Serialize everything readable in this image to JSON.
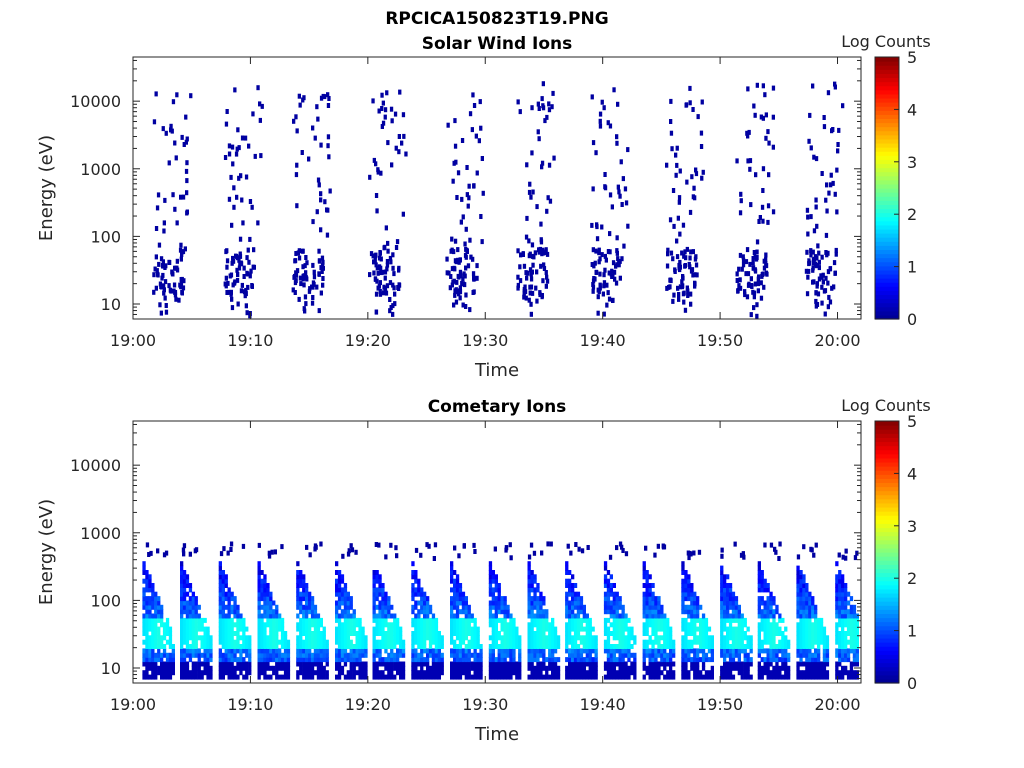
{
  "figure_title": "RPCICA150823T19.PNG",
  "colors": {
    "background": "#ffffff",
    "axes": "#262626",
    "colormap": [
      "#00008f",
      "#0000ff",
      "#0080ff",
      "#00ffff",
      "#80ff80",
      "#ffff00",
      "#ff8000",
      "#ff0000",
      "#800000"
    ]
  },
  "chart_data": [
    {
      "type": "heatmap",
      "title": "Solar Wind Ions",
      "xlabel": "Time",
      "ylabel": "Energy (eV)",
      "x_ticks": [
        "19:00",
        "19:10",
        "19:20",
        "19:30",
        "19:40",
        "19:50",
        "20:00"
      ],
      "x_range_minutes": [
        0,
        62
      ],
      "y_scale": "log",
      "y_ticks": [
        "10",
        "100",
        "1000",
        "10000"
      ],
      "y_range_eV": [
        6,
        45000
      ],
      "colorbar": {
        "label": "Log Counts",
        "ticks": [
          "0",
          "1",
          "2",
          "3",
          "4",
          "5"
        ],
        "range": [
          0,
          5
        ],
        "colormap": "jet"
      },
      "grid": false,
      "sweep_start_minutes": [
        1.6,
        7.7,
        13.5,
        20.0,
        26.6,
        32.6,
        38.9,
        45.3,
        51.3,
        57.2
      ],
      "dominant_level": 0.1,
      "core_energy_range_eV": [
        15,
        70
      ],
      "sparse_energy_range_eV": [
        70,
        20000
      ]
    },
    {
      "type": "heatmap",
      "title": "Cometary Ions",
      "xlabel": "Time",
      "ylabel": "Energy (eV)",
      "x_ticks": [
        "19:00",
        "19:10",
        "19:20",
        "19:30",
        "19:40",
        "19:50",
        "20:00"
      ],
      "x_range_minutes": [
        0,
        62
      ],
      "y_scale": "log",
      "y_ticks": [
        "10",
        "100",
        "1000",
        "10000"
      ],
      "y_range_eV": [
        6,
        45000
      ],
      "colorbar": {
        "label": "Log Counts",
        "ticks": [
          "0",
          "1",
          "2",
          "3",
          "4",
          "5"
        ],
        "range": [
          0,
          5
        ],
        "colormap": "jet"
      },
      "grid": false,
      "sweep_start_minutes": [
        0.8,
        4.0,
        7.3,
        10.6,
        13.9,
        17.2,
        20.4,
        23.7,
        27.0,
        30.3,
        33.6,
        36.8,
        40.1,
        43.4,
        46.7,
        50.0,
        53.2,
        56.5,
        59.8
      ],
      "peak_level": 2.0,
      "peak_energy_range_eV": [
        25,
        40
      ],
      "upper_energy_eV": 400
    }
  ]
}
